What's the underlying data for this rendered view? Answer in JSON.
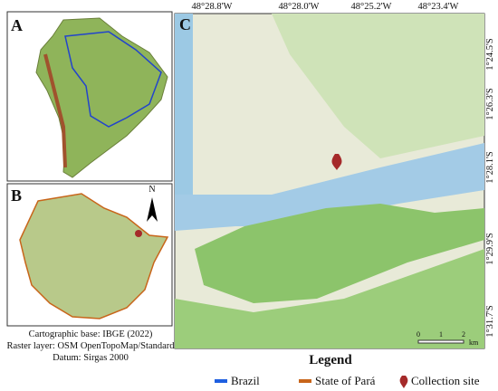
{
  "panels": {
    "a": "A",
    "b": "B",
    "c": "C"
  },
  "north_arrow": "N",
  "map_c": {
    "longitude_labels": [
      "48°28.8'W",
      "48°28.0'W",
      "48°25.2'W",
      "48°23.4'W"
    ],
    "latitude_labels": [
      "1°24.5'S",
      "1°26.3'S",
      "1°28.1'S",
      "1°29.9'S",
      "1°31.7'S"
    ],
    "scale_bar": [
      "0",
      "1",
      "2",
      "km"
    ]
  },
  "credits": [
    "Cartographic base: IBGE (2022)",
    "Raster layer: OSM OpenTopoMap/Standard",
    "Datum: Sirgas 2000"
  ],
  "legend": {
    "title": "Legend",
    "items": [
      "Brazil",
      "State of Pará",
      "Collection site"
    ]
  }
}
